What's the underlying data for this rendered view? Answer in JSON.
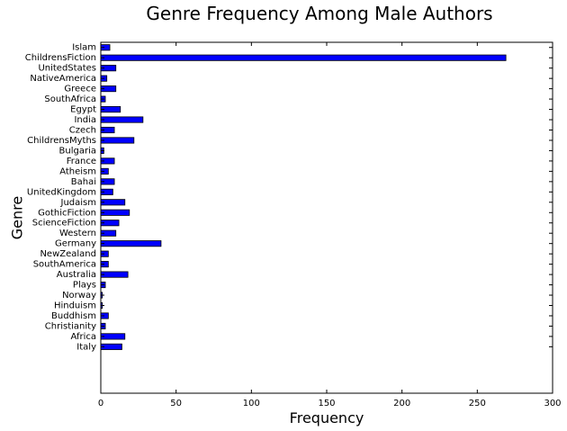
{
  "chart_data": {
    "type": "bar",
    "orientation": "horizontal",
    "title": "Genre Frequency Among Male Authors",
    "xlabel": "Frequency",
    "ylabel": "Genre",
    "xlim": [
      0,
      300
    ],
    "xticks": [
      0,
      50,
      100,
      150,
      200,
      250,
      300
    ],
    "grid": false,
    "bar_color": "#0000ff",
    "categories": [
      "Islam",
      "ChildrensFiction",
      "UnitedStates",
      "NativeAmerica",
      "Greece",
      "SouthAfrica",
      "Egypt",
      "India",
      "Czech",
      "ChildrensMyths",
      "Bulgaria",
      "France",
      "Atheism",
      "Bahai",
      "UnitedKingdom",
      "Judaism",
      "GothicFiction",
      "ScienceFiction",
      "Western",
      "Germany",
      "NewZealand",
      "SouthAmerica",
      "Australia",
      "Plays",
      "Norway",
      "Hinduism",
      "Buddhism",
      "Christianity",
      "Africa",
      "Italy"
    ],
    "values": [
      6,
      269,
      10,
      4,
      10,
      3,
      13,
      28,
      9,
      22,
      2,
      9,
      5,
      9,
      8,
      16,
      19,
      12,
      10,
      40,
      5,
      5,
      18,
      3,
      1,
      1,
      5,
      3,
      16,
      14
    ]
  }
}
